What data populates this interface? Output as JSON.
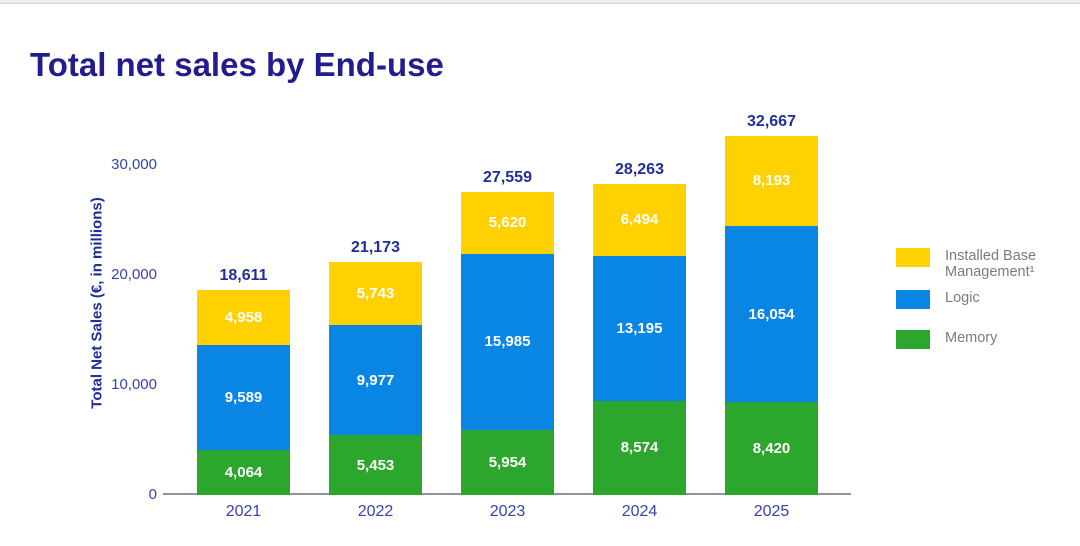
{
  "title": "Total net sales by End-use",
  "colors": {
    "title_navy": "#221c8e",
    "value_navy": "#1f2f96",
    "axis_blue": "#3642ad",
    "legend_gray": "#7b7b7b",
    "axis_line_gray": "#949494",
    "memory_green": "#2da62d",
    "logic_blue": "#0986e4",
    "installed_base_yellow": "#ffd100"
  },
  "chart_data": {
    "type": "bar",
    "stacked": true,
    "title": "Total net sales by End-use",
    "xlabel": "",
    "ylabel": "Total Net Sales (€, in millions)",
    "categories": [
      "2021",
      "2022",
      "2023",
      "2024",
      "2025"
    ],
    "series": [
      {
        "name": "Memory",
        "color": "#2da62d",
        "values": [
          4064,
          5453,
          5954,
          8574,
          8420
        ]
      },
      {
        "name": "Logic",
        "color": "#0986e4",
        "values": [
          9589,
          9977,
          15985,
          13195,
          16054
        ]
      },
      {
        "name": "Installed Base Management¹",
        "color": "#ffd100",
        "values": [
          4958,
          5743,
          5620,
          6494,
          8193
        ]
      }
    ],
    "totals": [
      18611,
      21173,
      27559,
      28263,
      32667
    ],
    "yticks": [
      0,
      10000,
      20000,
      30000
    ],
    "ytick_labels": [
      "0",
      "10,000",
      "20,000",
      "30,000"
    ],
    "ylim": [
      0,
      30000
    ],
    "grid": false,
    "legend_position": "right"
  },
  "legend": [
    {
      "label": "Installed Base Management¹",
      "label_lines": [
        "Installed Base",
        "Management¹"
      ],
      "color": "#ffd100"
    },
    {
      "label": "Logic",
      "label_lines": [
        "Logic"
      ],
      "color": "#0986e4"
    },
    {
      "label": "Memory",
      "label_lines": [
        "Memory"
      ],
      "color": "#2da62d"
    }
  ]
}
